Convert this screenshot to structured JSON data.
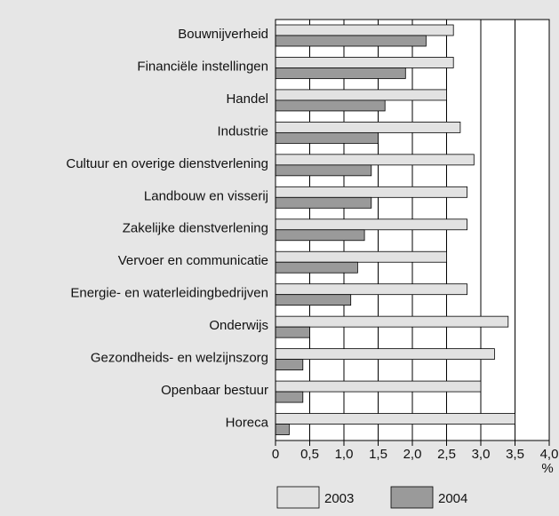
{
  "chart_data": {
    "type": "bar",
    "orientation": "horizontal",
    "categories": [
      "Bouwnijverheid",
      "Financiële instellingen",
      "Handel",
      "Industrie",
      "Cultuur en overige dienstverlening",
      "Landbouw en visserij",
      "Zakelijke dienstverlening",
      "Vervoer en communicatie",
      "Energie- en waterleidingbedrijven",
      "Onderwijs",
      "Gezondheids- en welzijnszorg",
      "Openbaar bestuur",
      "Horeca"
    ],
    "series": [
      {
        "name": "2003",
        "color": "#e2e2e2",
        "values": [
          2.6,
          2.6,
          2.5,
          2.7,
          2.9,
          2.8,
          2.8,
          2.5,
          2.8,
          3.4,
          3.2,
          3.0,
          3.5
        ]
      },
      {
        "name": "2004",
        "color": "#9a9a9a",
        "values": [
          2.2,
          1.9,
          1.6,
          1.5,
          1.4,
          1.4,
          1.3,
          1.2,
          1.1,
          0.5,
          0.4,
          0.4,
          0.2
        ]
      }
    ],
    "xlabel": "%",
    "xlim": [
      0,
      4
    ],
    "xticks": [
      0,
      {
        "value": 0.5,
        "label": "0,5"
      },
      {
        "value": 1,
        "label": "1,0"
      },
      {
        "value": 1.5,
        "label": "1,5"
      },
      {
        "value": 2,
        "label": "2,0"
      },
      {
        "value": 2.5,
        "label": "2,5"
      },
      {
        "value": 3,
        "label": "3,0"
      },
      {
        "value": 3.5,
        "label": "3,5"
      },
      {
        "value": 4,
        "label": "4,0"
      }
    ],
    "grid": true,
    "legend": "bottom"
  }
}
